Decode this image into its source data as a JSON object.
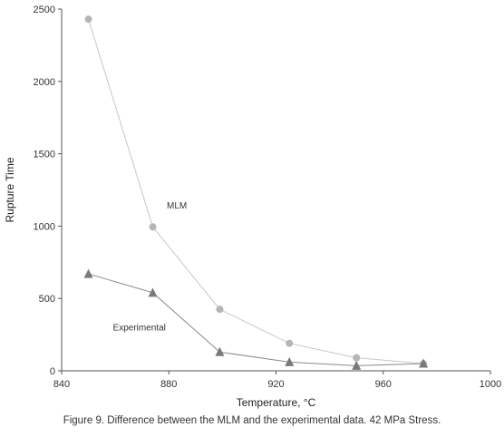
{
  "chart_data": {
    "type": "line",
    "xlabel": "Temperature, °C",
    "ylabel": "Rupture Time",
    "xlim": [
      840,
      1000
    ],
    "ylim": [
      0,
      2500
    ],
    "x_ticks": [
      840,
      880,
      920,
      960,
      1000
    ],
    "y_ticks": [
      0,
      500,
      1000,
      1500,
      2000,
      2500
    ],
    "grid": false,
    "series": [
      {
        "name": "MLM",
        "marker": "circle",
        "color": "#b5b5b5",
        "x": [
          850,
          874,
          899,
          925,
          950,
          975
        ],
        "y": [
          2430,
          995,
          425,
          190,
          90,
          50
        ]
      },
      {
        "name": "Experimental",
        "marker": "triangle",
        "color": "#7a7a7a",
        "x": [
          850,
          874,
          899,
          925,
          950,
          975
        ],
        "y": [
          670,
          540,
          130,
          60,
          35,
          50
        ]
      }
    ],
    "annotations": [
      {
        "text": "MLM",
        "x": 883,
        "y": 1120
      },
      {
        "text": "Experimental",
        "x": 869,
        "y": 280
      }
    ]
  },
  "caption": "Figure 9. Difference between the MLM and the experimental data. 42 MPa Stress."
}
